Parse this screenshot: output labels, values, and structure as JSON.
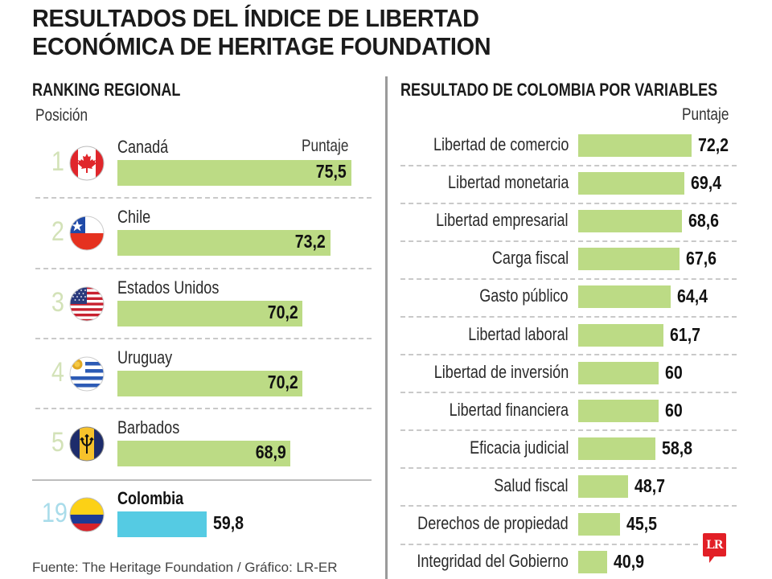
{
  "title_lines": [
    "RESULTADOS DEL ÍNDICE DE LIBERTAD",
    "ECONÓMICA DE HERITAGE FOUNDATION"
  ],
  "left_panel": {
    "title": "RANKING REGIONAL",
    "position_label": "Posición",
    "score_label": "Puntaje"
  },
  "right_panel": {
    "title": "RESULTADO DE COLOMBIA POR VARIABLES",
    "score_label": "Puntaje"
  },
  "source": "Fuente: The Heritage Foundation / Gráfico: LR-ER",
  "logo_text": "LR",
  "colors": {
    "bar_green": "#bcdb85",
    "bar_colombia": "#55cbe3",
    "rank_green": "#d3e2b8",
    "rank_colombia": "#a9dcea",
    "logo_red": "#e21f26"
  },
  "chart_data": [
    {
      "type": "bar",
      "orientation": "horizontal",
      "title": "RANKING REGIONAL",
      "xlabel": "Puntaje",
      "ylabel": "Posición",
      "xlim": [
        50,
        77
      ],
      "grid": false,
      "categories": [
        "Canadá",
        "Chile",
        "Estados Unidos",
        "Uruguay",
        "Barbados",
        "Colombia"
      ],
      "positions": [
        "1",
        "2",
        "3",
        "4",
        "5",
        "19"
      ],
      "flags": [
        "canada-flag-icon",
        "chile-flag-icon",
        "usa-flag-icon",
        "uruguay-flag-icon",
        "barbados-flag-icon",
        "colombia-flag-icon"
      ],
      "values": [
        75.5,
        73.2,
        70.2,
        70.2,
        68.9,
        59.8
      ],
      "value_labels": [
        "75,5",
        "73,2",
        "70,2",
        "70,2",
        "68,9",
        "59,8"
      ],
      "highlight": "Colombia"
    },
    {
      "type": "bar",
      "orientation": "horizontal",
      "title": "RESULTADO DE COLOMBIA POR VARIABLES",
      "xlabel": "Puntaje",
      "xlim": [
        30,
        75
      ],
      "grid": false,
      "categories": [
        "Libertad de comercio",
        "Libertad monetaria",
        "Libertad empresarial",
        "Carga fiscal",
        "Gasto público",
        "Libertad laboral",
        "Libertad de inversión",
        "Libertad financiera",
        "Eficacia judicial",
        "Salud fiscal",
        "Derechos de propiedad",
        "Integridad del Gobierno"
      ],
      "values": [
        72.2,
        69.4,
        68.6,
        67.6,
        64.4,
        61.7,
        60,
        60,
        58.8,
        48.7,
        45.5,
        40.9
      ],
      "value_labels": [
        "72,2",
        "69,4",
        "68,6",
        "67,6",
        "64,4",
        "61,7",
        "60",
        "60",
        "58,8",
        "48,7",
        "45,5",
        "40,9"
      ]
    }
  ]
}
